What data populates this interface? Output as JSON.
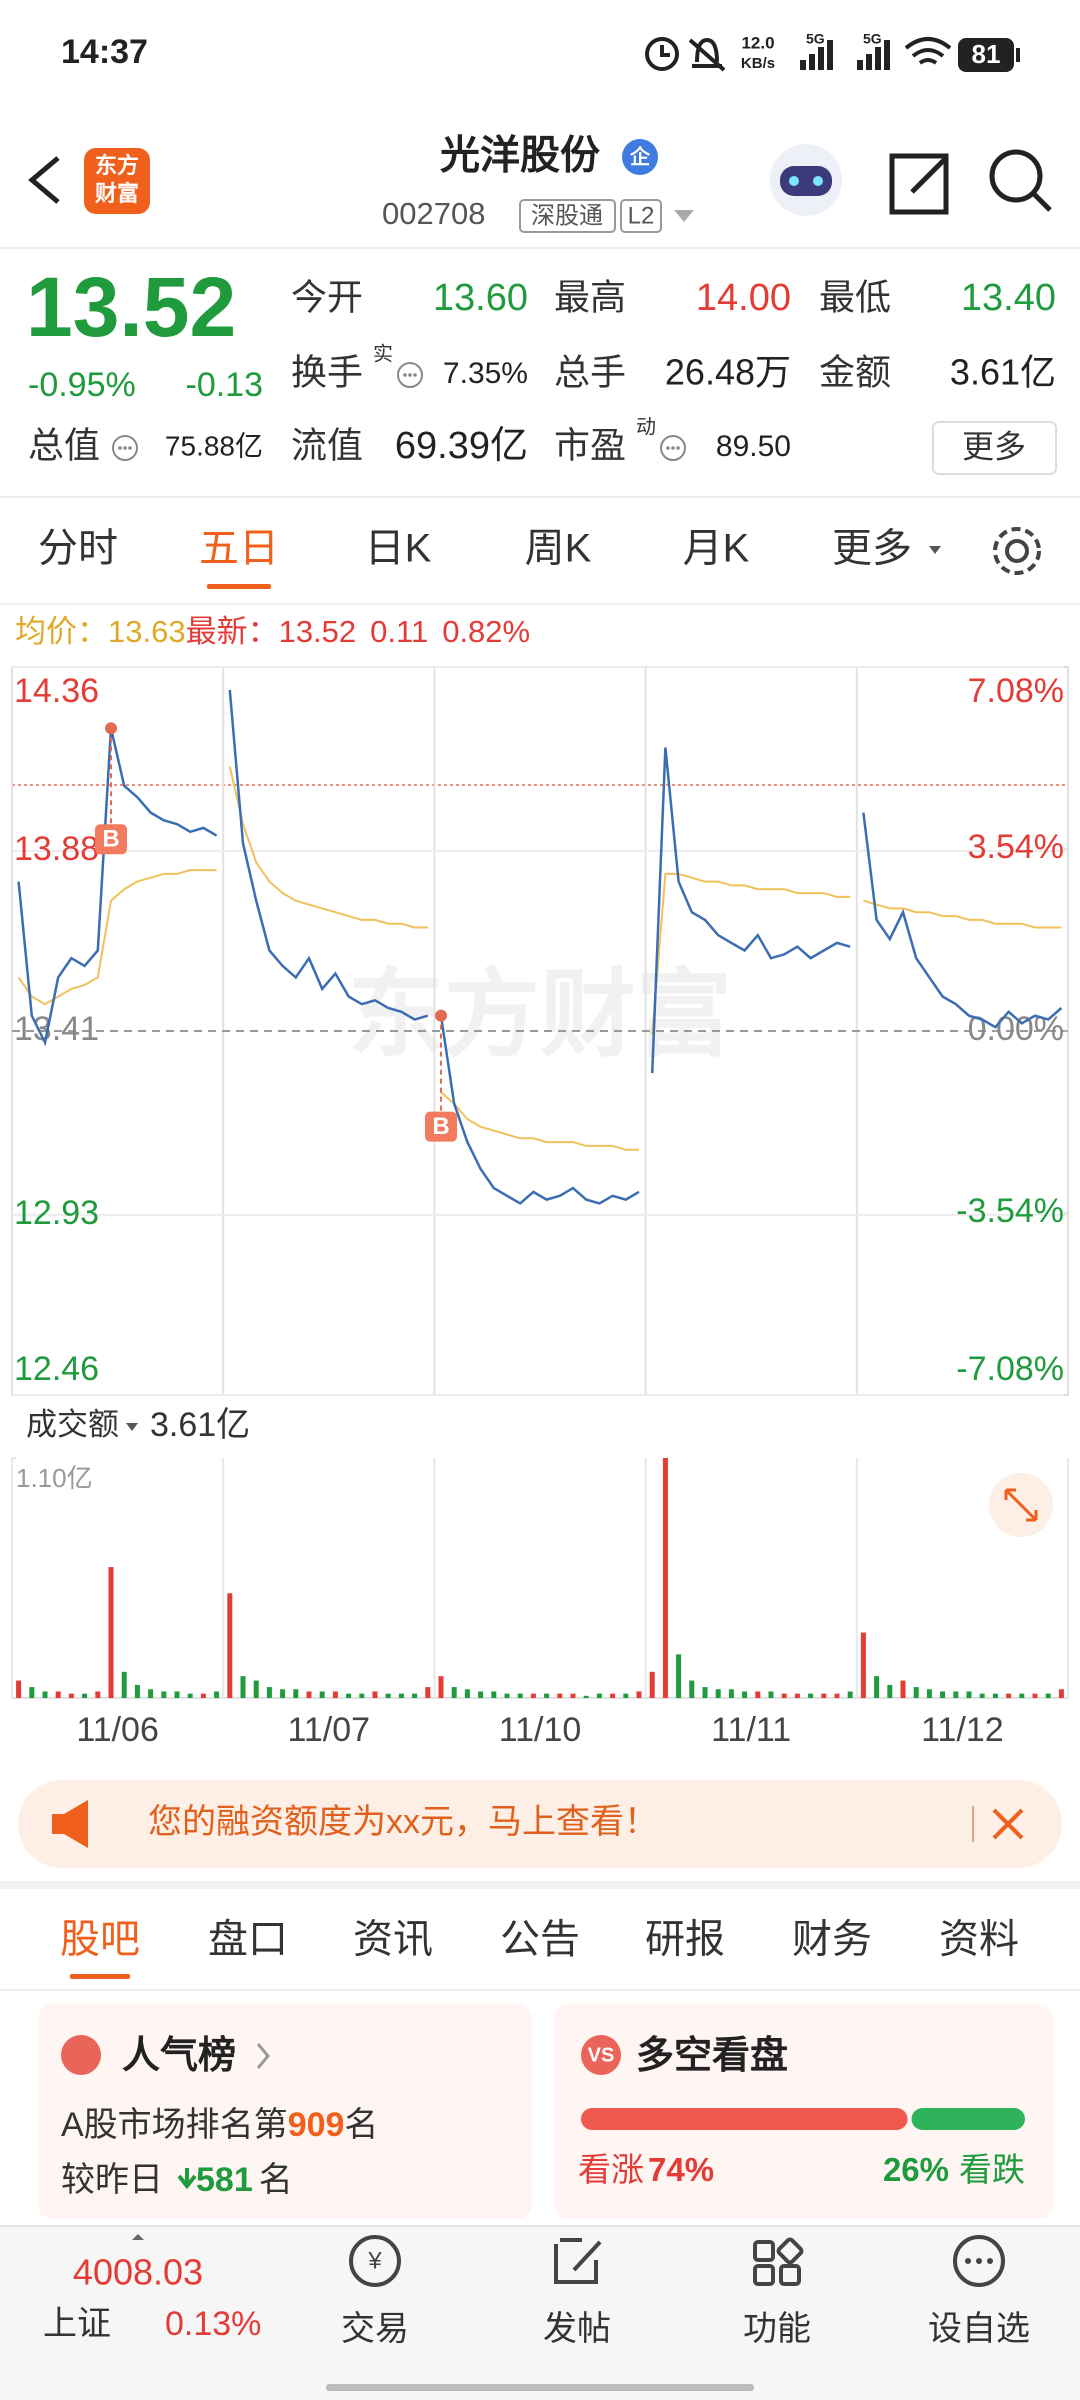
{
  "status_bar": {
    "time": "14:37",
    "net_speed": "12.0",
    "net_unit": "KB/s",
    "signal_1": "5G",
    "signal_2": "5G",
    "battery": "81"
  },
  "header": {
    "logo_top": "东方",
    "logo_bottom": "财富",
    "name": "光洋股份",
    "badge": "企",
    "code": "002708",
    "tag": "深股通",
    "level": "L2"
  },
  "quote": {
    "price": "13.52",
    "change_pct": "-0.95%",
    "change": "-0.13",
    "stats": [
      {
        "label": "今开",
        "value": "13.60"
      },
      {
        "label": "最高",
        "value": "14.00"
      },
      {
        "label": "最低",
        "value": "13.40"
      },
      {
        "label": "换手",
        "sup": "实",
        "value": "7.35%"
      },
      {
        "label": "总手",
        "value": "26.48万"
      },
      {
        "label": "金额",
        "value": "3.61亿"
      },
      {
        "label": "总值",
        "value": "75.88亿"
      },
      {
        "label": "流值",
        "value": "69.39亿"
      },
      {
        "label": "市盈",
        "sup": "动",
        "value": "89.50"
      }
    ],
    "more": "更多"
  },
  "tabs": [
    "分时",
    "五日",
    "日K",
    "周K",
    "月K",
    "更多"
  ],
  "chart": {
    "legend": {
      "avg_label": "均价：",
      "avg": "13.63",
      "last_label": "最新：",
      "last": "13.52",
      "change": "0.11",
      "change_pct": "0.82%"
    },
    "watermark": "东方财富",
    "ylim": [
      12.46,
      14.36
    ],
    "yticks": [
      14.36,
      13.88,
      13.41,
      12.93,
      12.46
    ],
    "y2lim": [
      -7.08,
      7.08
    ],
    "y2ticks": [
      {
        "value": 7.08,
        "label": "7.08%"
      },
      {
        "value": 3.54,
        "label": "3.54%"
      },
      {
        "value": 0,
        "label": "0.00%"
      },
      {
        "value": -3.54,
        "label": "-3.54%"
      },
      {
        "value": -7.08,
        "label": "-7.08%"
      }
    ],
    "buy_markers": [
      "B",
      "B"
    ],
    "volume_label": "成交额",
    "volume_total": "3.61亿",
    "vol_ylim": [
      0,
      1.1
    ],
    "vol_ticks": [
      {
        "value": 1.1,
        "label": "1.10亿"
      }
    ],
    "colors": {
      "price": "#3b6db3",
      "avg": "#f0c05a",
      "up": "#e33b36",
      "down": "#1f9a3c"
    },
    "days": [
      {
        "date": "11/06",
        "price": [
          13.8,
          13.45,
          13.38,
          13.55,
          13.6,
          13.58,
          13.62,
          14.2,
          14.05,
          14.02,
          13.98,
          13.96,
          13.95,
          13.93,
          13.94,
          13.92
        ],
        "avg": [
          13.55,
          13.5,
          13.48,
          13.5,
          13.52,
          13.53,
          13.55,
          13.75,
          13.78,
          13.8,
          13.81,
          13.82,
          13.82,
          13.83,
          13.83,
          13.83
        ],
        "volume": [
          0.08,
          0.05,
          0.03,
          0.03,
          0.02,
          0.02,
          0.03,
          0.6,
          0.12,
          0.06,
          0.04,
          0.03,
          0.03,
          0.02,
          0.02,
          0.03
        ]
      },
      {
        "date": "11/07",
        "price": [
          14.3,
          13.9,
          13.75,
          13.62,
          13.58,
          13.55,
          13.6,
          13.52,
          13.56,
          13.5,
          13.48,
          13.49,
          13.47,
          13.46,
          13.44,
          13.45
        ],
        "avg": [
          14.1,
          13.95,
          13.85,
          13.8,
          13.77,
          13.75,
          13.74,
          13.73,
          13.72,
          13.71,
          13.7,
          13.7,
          13.69,
          13.69,
          13.68,
          13.68
        ],
        "volume": [
          0.48,
          0.1,
          0.08,
          0.05,
          0.04,
          0.04,
          0.03,
          0.03,
          0.03,
          0.02,
          0.02,
          0.03,
          0.02,
          0.02,
          0.02,
          0.05
        ]
      },
      {
        "date": "11/10",
        "price": [
          13.45,
          13.22,
          13.12,
          13.05,
          13.0,
          12.98,
          12.96,
          12.99,
          12.97,
          12.98,
          13.0,
          12.97,
          12.96,
          12.98,
          12.97,
          12.99
        ],
        "avg": [
          13.25,
          13.22,
          13.18,
          13.16,
          13.15,
          13.14,
          13.13,
          13.13,
          13.12,
          13.12,
          13.12,
          13.11,
          13.11,
          13.11,
          13.1,
          13.1
        ],
        "volume": [
          0.1,
          0.05,
          0.04,
          0.03,
          0.03,
          0.02,
          0.02,
          0.02,
          0.02,
          0.02,
          0.02,
          0.01,
          0.02,
          0.02,
          0.02,
          0.03
        ]
      },
      {
        "date": "11/11",
        "price": [
          13.3,
          14.15,
          13.8,
          13.72,
          13.7,
          13.66,
          13.64,
          13.62,
          13.66,
          13.6,
          13.61,
          13.63,
          13.6,
          13.62,
          13.64,
          13.63
        ],
        "avg": [
          13.4,
          13.82,
          13.82,
          13.81,
          13.8,
          13.8,
          13.79,
          13.79,
          13.78,
          13.78,
          13.78,
          13.77,
          13.77,
          13.77,
          13.76,
          13.76
        ],
        "volume": [
          0.12,
          1.1,
          0.2,
          0.08,
          0.05,
          0.04,
          0.04,
          0.03,
          0.03,
          0.03,
          0.02,
          0.02,
          0.02,
          0.02,
          0.02,
          0.03
        ]
      },
      {
        "date": "11/12",
        "price": [
          13.98,
          13.7,
          13.65,
          13.72,
          13.6,
          13.55,
          13.5,
          13.48,
          13.45,
          13.44,
          13.42,
          13.46,
          13.43,
          13.45,
          13.44,
          13.47
        ],
        "avg": [
          13.75,
          13.74,
          13.73,
          13.73,
          13.72,
          13.72,
          13.71,
          13.71,
          13.7,
          13.7,
          13.69,
          13.69,
          13.69,
          13.68,
          13.68,
          13.68
        ],
        "volume": [
          0.3,
          0.1,
          0.06,
          0.08,
          0.05,
          0.04,
          0.03,
          0.03,
          0.03,
          0.02,
          0.02,
          0.02,
          0.02,
          0.02,
          0.02,
          0.04
        ]
      }
    ]
  },
  "banner": {
    "text": "您的融资额度为xx元，马上查看！"
  },
  "section_tabs": [
    "股吧",
    "盘口",
    "资讯",
    "公告",
    "研报",
    "财务",
    "资料"
  ],
  "cards": {
    "popularity": {
      "title": "人气榜",
      "rank_prefix": "A股市场排名第",
      "rank": "909",
      "rank_suffix": "名",
      "change_prefix": "较昨日",
      "change": "581",
      "change_suffix": "名"
    },
    "sentiment": {
      "title": "多空看盘",
      "bull_label": "看涨",
      "bull": {
        "value": 74,
        "label": "74%"
      },
      "bear": {
        "value": 26,
        "label": "26%"
      },
      "bear_label": "看跌"
    }
  },
  "bottom_nav": {
    "index_value": "4008.03",
    "index_name": "上证",
    "index_change": "0.13%",
    "items": [
      "交易",
      "发帖",
      "功能",
      "设自选"
    ]
  }
}
